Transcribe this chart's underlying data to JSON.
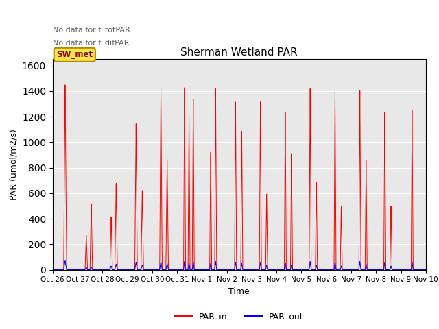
{
  "title": "Sherman Wetland PAR",
  "ylabel": "PAR (umol/m2/s)",
  "xlabel": "Time",
  "annotation1": "No data for f_totPAR",
  "annotation2": "No data for f_difPAR",
  "box_label": "SW_met",
  "ylim": [
    0,
    1650
  ],
  "legend_labels": [
    "PAR_in",
    "PAR_out"
  ],
  "tick_labels": [
    "Oct 26",
    "Oct 27",
    "Oct 28",
    "Oct 29",
    "Oct 30",
    "Oct 31",
    "Nov 1",
    "Nov 2",
    "Nov 3",
    "Nov 4",
    "Nov 5",
    "Nov 6",
    "Nov 7",
    "Nov 8",
    "Nov 9",
    "Nov 10"
  ],
  "background_color": "#e8e8e8",
  "par_in_peaks": [
    1450,
    520,
    270,
    420,
    680,
    415,
    1150,
    625,
    1430,
    870,
    1440,
    1210,
    1350,
    930,
    1440,
    1330,
    1330,
    1100,
    1330,
    600,
    1250,
    920,
    1430,
    690,
    1420,
    500,
    1410,
    860,
    1240,
    500
  ],
  "par_out_peaks": [
    70,
    25,
    20,
    35,
    45,
    30,
    60,
    40,
    65,
    50,
    65,
    55,
    65,
    50,
    65,
    60,
    60,
    50,
    60,
    35,
    55,
    40,
    65,
    35,
    65,
    30,
    65,
    45,
    60,
    30
  ]
}
